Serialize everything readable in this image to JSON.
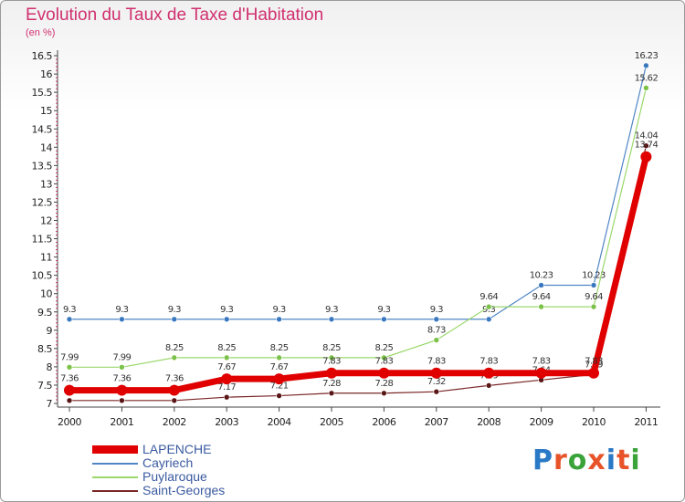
{
  "header": {
    "title": "Evolution du Taux de Taxe d'Habitation",
    "unit": "(en %)"
  },
  "logo": {
    "text": "Proxiti",
    "letters": [
      "P",
      "r",
      "o",
      "x",
      "i",
      "t",
      "i"
    ],
    "colors": [
      "#2a79c6",
      "#e8542a",
      "#3aa33a",
      "#e8542a",
      "#2a79c6",
      "#e8542a",
      "#3aa33a"
    ]
  },
  "chart_data": {
    "type": "line",
    "title": "Evolution du Taux de Taxe d'Habitation",
    "ylabel": "(en %)",
    "xlabel": "",
    "categories": [
      "2000",
      "2001",
      "2002",
      "2003",
      "2004",
      "2005",
      "2006",
      "2007",
      "2008",
      "2009",
      "2010",
      "2011"
    ],
    "ylim": [
      7,
      16.5
    ],
    "yticks": [
      "7",
      "7.5",
      "8",
      "8.5",
      "9",
      "9.5",
      "10",
      "10.5",
      "11",
      "11.5",
      "12",
      "12.5",
      "13",
      "13.5",
      "14",
      "14.5",
      "15",
      "15.5",
      "16",
      "16.5"
    ],
    "grid": false,
    "legend_position": "bottom-left",
    "series": [
      {
        "name": "Cayriech",
        "color": "#4f86c6",
        "dot": "#3a78c0",
        "width": 1.2,
        "values": [
          9.3,
          9.3,
          9.3,
          9.3,
          9.3,
          9.3,
          9.3,
          9.3,
          9.3,
          10.23,
          10.23,
          16.23
        ],
        "labels": [
          "9.3",
          "9.3",
          "9.3",
          "9.3",
          "9.3",
          "9.3",
          "9.3",
          "9.3",
          "9.3",
          "10.23",
          "10.23",
          "16.23"
        ]
      },
      {
        "name": "Puylaroque",
        "color": "#9bd86b",
        "dot": "#7cc24a",
        "width": 1.2,
        "values": [
          7.99,
          7.99,
          8.25,
          8.25,
          8.25,
          8.25,
          8.25,
          8.73,
          9.64,
          9.64,
          9.64,
          15.62
        ],
        "labels": [
          "7.99",
          "7.99",
          "8.25",
          "8.25",
          "8.25",
          "8.25",
          "8.25",
          "8.73",
          "9.64",
          "9.64",
          "9.64",
          "15.62"
        ]
      },
      {
        "name": "Saint-Georges",
        "color": "#7a2626",
        "dot": "#5a1616",
        "width": 1.2,
        "values": [
          7.08,
          7.08,
          7.08,
          7.17,
          7.21,
          7.28,
          7.28,
          7.32,
          7.49,
          7.64,
          7.79,
          14.04
        ],
        "labels": [
          "",
          "",
          "",
          "7.17",
          "7.21",
          "7.28",
          "7.28",
          "7.32",
          "7.49",
          "7.64",
          "7.79",
          "14.04"
        ]
      },
      {
        "name": "LAPENCHE",
        "color": "#e00000",
        "dot": "#e00000",
        "width": 7,
        "values": [
          7.36,
          7.36,
          7.36,
          7.67,
          7.67,
          7.83,
          7.83,
          7.83,
          7.83,
          7.83,
          7.83,
          13.74
        ],
        "labels": [
          "7.36",
          "7.36",
          "7.36",
          "7.67",
          "7.67",
          "7.83",
          "7.83",
          "7.83",
          "7.83",
          "7.83",
          "7.83",
          "13.74"
        ]
      }
    ]
  }
}
